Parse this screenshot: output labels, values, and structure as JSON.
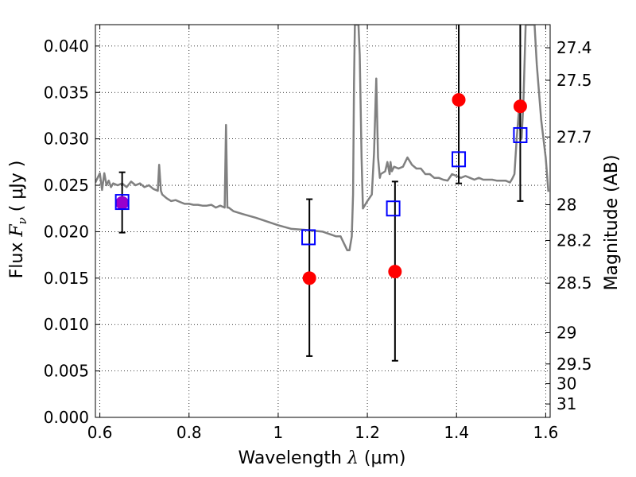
{
  "chart_data": {
    "type": "scatter",
    "xlabel_prefix": "Wavelength  ",
    "xlabel_symbol": "λ",
    "xlabel_unit": " (μm)",
    "ylabel_prefix": "Flux  ",
    "ylabel_symbol": "F",
    "ylabel_sub": "ν",
    "ylabel_unit": "  ( μJy )",
    "y2label": "Magnitude (AB)",
    "xlim": [
      0.59,
      1.61
    ],
    "ylim": [
      0.0,
      0.0423
    ],
    "grid": true,
    "x_ticks": [
      {
        "v": 0.6,
        "label": "0.6"
      },
      {
        "v": 0.8,
        "label": "0.8"
      },
      {
        "v": 1.0,
        "label": "1"
      },
      {
        "v": 1.2,
        "label": "1.2"
      },
      {
        "v": 1.4,
        "label": "1.4"
      },
      {
        "v": 1.6,
        "label": "1.6"
      }
    ],
    "y_ticks": [
      {
        "v": 0.0,
        "label": "0.000"
      },
      {
        "v": 0.005,
        "label": "0.005"
      },
      {
        "v": 0.01,
        "label": "0.010"
      },
      {
        "v": 0.015,
        "label": "0.015"
      },
      {
        "v": 0.02,
        "label": "0.020"
      },
      {
        "v": 0.025,
        "label": "0.025"
      },
      {
        "v": 0.03,
        "label": "0.030"
      },
      {
        "v": 0.035,
        "label": "0.035"
      },
      {
        "v": 0.04,
        "label": "0.040"
      }
    ],
    "y2_ticks": [
      {
        "mag": 27.4,
        "label": "27.4"
      },
      {
        "mag": 27.5,
        "label": "27.5"
      },
      {
        "mag": 27.7,
        "label": "27.7"
      },
      {
        "mag": 28.0,
        "label": "28"
      },
      {
        "mag": 28.2,
        "label": "28.2"
      },
      {
        "mag": 28.5,
        "label": "28.5"
      },
      {
        "mag": 29.0,
        "label": "29"
      },
      {
        "mag": 29.5,
        "label": "29.5"
      },
      {
        "mag": 30.0,
        "label": "30"
      },
      {
        "mag": 31.0,
        "label": "31"
      }
    ],
    "series": [
      {
        "kind": "line",
        "color": "#808080",
        "x": [
          0.59,
          0.6,
          0.605,
          0.61,
          0.615,
          0.62,
          0.625,
          0.63,
          0.64,
          0.65,
          0.66,
          0.67,
          0.68,
          0.69,
          0.7,
          0.71,
          0.72,
          0.73,
          0.733,
          0.737,
          0.74,
          0.75,
          0.76,
          0.77,
          0.78,
          0.79,
          0.8,
          0.81,
          0.82,
          0.83,
          0.84,
          0.85,
          0.86,
          0.87,
          0.88,
          0.883,
          0.886,
          0.889,
          0.9,
          0.92,
          0.95,
          1.0,
          1.03,
          1.06,
          1.1,
          1.13,
          1.14,
          1.15,
          1.155,
          1.16,
          1.165,
          1.168,
          1.17,
          1.172,
          1.175,
          1.18,
          1.183,
          1.187,
          1.19,
          1.2,
          1.21,
          1.215,
          1.22,
          1.224,
          1.228,
          1.23,
          1.24,
          1.245,
          1.25,
          1.252,
          1.255,
          1.258,
          1.26,
          1.27,
          1.28,
          1.29,
          1.3,
          1.31,
          1.32,
          1.33,
          1.34,
          1.35,
          1.36,
          1.37,
          1.38,
          1.39,
          1.4,
          1.41,
          1.42,
          1.43,
          1.44,
          1.45,
          1.46,
          1.47,
          1.48,
          1.49,
          1.5,
          1.51,
          1.52,
          1.525,
          1.53,
          1.535,
          1.54,
          1.543,
          1.546,
          1.55,
          1.555,
          1.56,
          1.57,
          1.575,
          1.58,
          1.59,
          1.6,
          1.606
        ],
        "y": [
          0.0253,
          0.0263,
          0.0245,
          0.0263,
          0.025,
          0.0255,
          0.0248,
          0.0252,
          0.025,
          0.0252,
          0.0248,
          0.0254,
          0.025,
          0.0252,
          0.0248,
          0.025,
          0.0246,
          0.0244,
          0.0272,
          0.0244,
          0.024,
          0.0236,
          0.0233,
          0.0234,
          0.0232,
          0.023,
          0.023,
          0.0229,
          0.0229,
          0.0228,
          0.0228,
          0.0229,
          0.0226,
          0.0228,
          0.0226,
          0.0315,
          0.0226,
          0.0226,
          0.0222,
          0.0219,
          0.0215,
          0.0207,
          0.0203,
          0.0202,
          0.02,
          0.0195,
          0.0195,
          0.0185,
          0.018,
          0.018,
          0.0195,
          0.024,
          0.036,
          0.0423,
          0.0423,
          0.0423,
          0.039,
          0.028,
          0.0225,
          0.0233,
          0.024,
          0.0285,
          0.0365,
          0.028,
          0.0258,
          0.0262,
          0.0265,
          0.0275,
          0.0262,
          0.0275,
          0.0265,
          0.0268,
          0.027,
          0.0268,
          0.027,
          0.028,
          0.0272,
          0.0268,
          0.0268,
          0.0262,
          0.0262,
          0.0258,
          0.0258,
          0.0256,
          0.0255,
          0.0262,
          0.026,
          0.0258,
          0.026,
          0.0258,
          0.0256,
          0.0258,
          0.0256,
          0.0256,
          0.0256,
          0.0255,
          0.0255,
          0.0255,
          0.0253,
          0.0257,
          0.0262,
          0.03,
          0.033,
          0.031,
          0.03,
          0.034,
          0.0423,
          0.0423,
          0.0423,
          0.0423,
          0.038,
          0.032,
          0.028,
          0.0243
        ]
      },
      {
        "kind": "points",
        "name": "filled circles",
        "color": "#ff0000",
        "x": [
          0.65,
          1.07,
          1.262,
          1.405,
          1.543
        ],
        "y": [
          0.0231,
          0.015,
          0.0157,
          0.0342,
          0.0335
        ],
        "yerr_low": [
          0.0199,
          0.0066,
          0.0061,
          0.0252,
          0.0233
        ],
        "yerr_high": [
          0.0264,
          0.0235,
          0.0254,
          0.0423,
          0.0423
        ]
      },
      {
        "kind": "points",
        "name": "open squares",
        "color": "#0000ff",
        "x": [
          0.65,
          1.068,
          1.258,
          1.405,
          1.543
        ],
        "y": [
          0.0232,
          0.0194,
          0.0225,
          0.0278,
          0.0304
        ]
      }
    ],
    "overlap_marker_color": "#9900cc"
  }
}
